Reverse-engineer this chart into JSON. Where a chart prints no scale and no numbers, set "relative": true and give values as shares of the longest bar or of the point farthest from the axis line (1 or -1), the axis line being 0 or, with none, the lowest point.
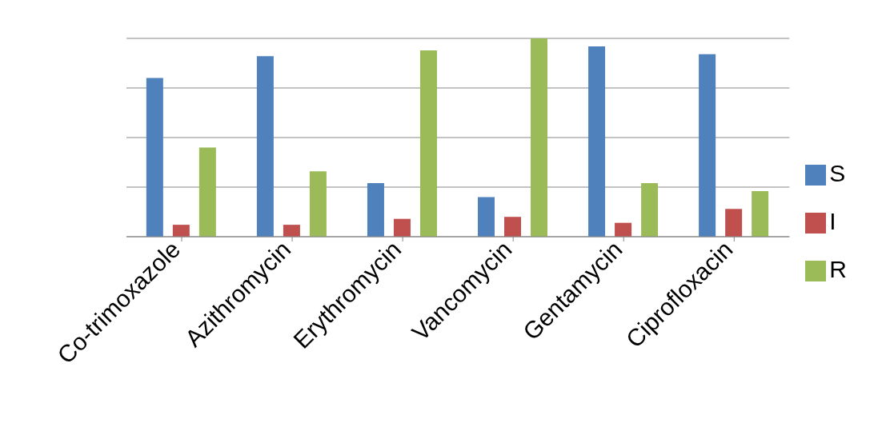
{
  "chart_data": {
    "type": "bar",
    "relative": true,
    "categories": [
      "Co-trimoxazole",
      "Azithromycin",
      "Erythromycin",
      "Vancomycin",
      "Gentamycin",
      "Ciprofloxacin"
    ],
    "series": [
      {
        "name": "S",
        "color": "#4f81bd",
        "values": [
          0.8,
          0.91,
          0.27,
          0.2,
          0.96,
          0.92
        ]
      },
      {
        "name": "I",
        "color": "#c0504d",
        "values": [
          0.06,
          0.06,
          0.09,
          0.1,
          0.07,
          0.14
        ]
      },
      {
        "name": "R",
        "color": "#9bbb59",
        "values": [
          0.45,
          0.33,
          0.94,
          1,
          0.27,
          0.23
        ]
      }
    ],
    "grid": "y",
    "legend": "right"
  }
}
